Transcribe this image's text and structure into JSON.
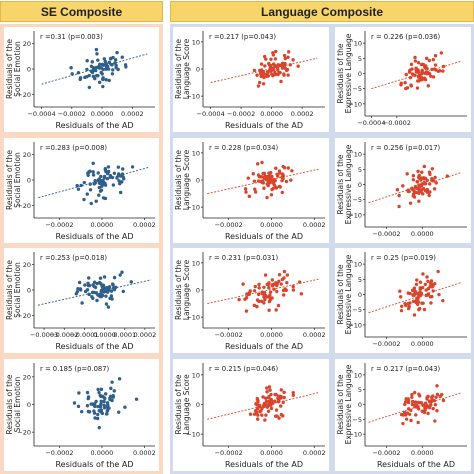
{
  "headers": {
    "se": "SE Composite",
    "language": "Language Composite"
  },
  "colors": {
    "se_points": "#2f5f8a",
    "lang_points": "#d9452c",
    "header_bg": "#f7d56a",
    "se_bg": "#f9d9c4",
    "lang_bg": "#d2dbeb"
  },
  "chart_data": [
    {
      "type": "scatter",
      "id": "se-r1",
      "xlabel": "Residuals of the AD",
      "ylabel": "Residuals of the Social Emotion",
      "annotation": "r =0.31 (p=0.003)",
      "xlim": [
        -0.00045,
        0.00035
      ],
      "ylim": [
        -30,
        30
      ],
      "xticks": [
        -0.0004,
        -0.0002,
        0.0,
        0.0002
      ],
      "xticklabels": [
        "−0.0004",
        "−0.0002",
        "0.0000",
        "0.0002"
      ],
      "yticks": [
        -20,
        0,
        20
      ],
      "yticklabels": [
        "−20",
        "0",
        "20"
      ],
      "show_xlabel": true,
      "trend": {
        "x": [
          -0.0004,
          0.0003
        ],
        "y": [
          -12,
          12
        ]
      },
      "seed": 11
    },
    {
      "type": "scatter",
      "id": "lang-r1-c1",
      "xlabel": "Residuals of the AD",
      "ylabel": "Residuals of the Language Score",
      "annotation": "r =0.217 (p=0.043)",
      "xlim": [
        -0.00045,
        0.00035
      ],
      "ylim": [
        -14,
        14
      ],
      "xticks": [
        -0.0004,
        -0.0002,
        0.0,
        0.0002
      ],
      "xticklabels": [
        "−0.0004",
        "−0.0002",
        "0.0000",
        "0.0002"
      ],
      "yticks": [
        -10,
        0,
        10
      ],
      "yticklabels": [
        "−10",
        "0",
        "10"
      ],
      "show_xlabel": true,
      "trend": {
        "x": [
          -0.0004,
          0.0003
        ],
        "y": [
          -5,
          4
        ]
      },
      "seed": 12
    },
    {
      "type": "scatter",
      "id": "lang-r1-c2",
      "xlabel": "",
      "ylabel": "Residuals of the Expressive Language",
      "annotation": "r = 0.226 (p=0.036)",
      "xlim": [
        -0.00045,
        0.00035
      ],
      "ylim": [
        -14,
        14
      ],
      "xticks": [
        -0.0004,
        -0.0002
      ],
      "xticklabels": [
        "−0.0004",
        "−0.0002"
      ],
      "yticks": [
        -10,
        -5,
        0,
        5,
        10
      ],
      "yticklabels": [
        "−10",
        "−5",
        "0",
        "5",
        "10"
      ],
      "show_xlabel": false,
      "trend": {
        "x": [
          -0.0004,
          0.0003
        ],
        "y": [
          -5,
          4
        ]
      },
      "seed": 13
    },
    {
      "type": "scatter",
      "id": "se-r2",
      "xlabel": "Residuals of the AD",
      "ylabel": "Residuals of the Social Emotion",
      "annotation": "r =0.283 (p=0.008)",
      "xlim": [
        -0.00032,
        0.00025
      ],
      "ylim": [
        -30,
        30
      ],
      "xticks": [
        -0.0002,
        0.0,
        0.0002
      ],
      "xticklabels": [
        "−0.0002",
        "0.0000",
        "0.0002"
      ],
      "yticks": [
        -20,
        0,
        20
      ],
      "yticklabels": [
        "−20",
        "0",
        "20"
      ],
      "show_xlabel": true,
      "trend": {
        "x": [
          -0.0003,
          0.00022
        ],
        "y": [
          -14,
          10
        ]
      },
      "seed": 21
    },
    {
      "type": "scatter",
      "id": "lang-r2-c1",
      "xlabel": "Residuals of the AD",
      "ylabel": "Residuals of the Language Score",
      "annotation": "r = 0.228 (p=0.034)",
      "xlim": [
        -0.00032,
        0.00025
      ],
      "ylim": [
        -14,
        14
      ],
      "xticks": [
        -0.0002,
        0.0,
        0.0002
      ],
      "xticklabels": [
        "−0.0002",
        "0.0000",
        "0.0002"
      ],
      "yticks": [
        -10,
        0,
        10
      ],
      "yticklabels": [
        "−10",
        "0",
        "10"
      ],
      "show_xlabel": true,
      "trend": {
        "x": [
          -0.0003,
          0.00022
        ],
        "y": [
          -5,
          4
        ]
      },
      "seed": 22
    },
    {
      "type": "scatter",
      "id": "lang-r2-c2",
      "xlabel": "",
      "ylabel": "Residuals of the Expressive Language",
      "annotation": "r = 0.256 (p=0.017)",
      "xlim": [
        -0.00032,
        0.00025
      ],
      "ylim": [
        -14,
        14
      ],
      "xticks": [
        -0.0002,
        0.0
      ],
      "xticklabels": [
        "−0.0002",
        "0.0000"
      ],
      "yticks": [
        -10,
        -5,
        0,
        5,
        10
      ],
      "yticklabels": [
        "−10",
        "−5",
        "0",
        "5",
        "10"
      ],
      "show_xlabel": false,
      "trend": {
        "x": [
          -0.0003,
          0.00022
        ],
        "y": [
          -6,
          4
        ]
      },
      "seed": 23
    },
    {
      "type": "scatter",
      "id": "se-r3",
      "xlabel": "Residuals of the AD",
      "ylabel": "Residuals of the Social Emotion",
      "annotation": "r =0.253 (p=0.018)",
      "xlim": [
        -0.00035,
        0.00025
      ],
      "ylim": [
        -30,
        30
      ],
      "xticks": [
        -0.0003,
        -0.0002,
        -0.0001,
        0.0,
        0.0001,
        0.0002
      ],
      "xticklabels": [
        "−0.0003",
        "−0.0002",
        "−0.0001",
        "0.0000",
        "0.0001",
        "0.0002"
      ],
      "yticks": [
        -20,
        0,
        20
      ],
      "yticklabels": [
        "−20",
        "0",
        "20"
      ],
      "show_xlabel": true,
      "trend": {
        "x": [
          -0.00033,
          0.00023
        ],
        "y": [
          -12,
          8
        ]
      },
      "seed": 31
    },
    {
      "type": "scatter",
      "id": "lang-r3-c1",
      "xlabel": "Residuals of the AD",
      "ylabel": "Residuals of the Language Score",
      "annotation": "r = 0.231 (p=0.031)",
      "xlim": [
        -0.00032,
        0.00025
      ],
      "ylim": [
        -14,
        14
      ],
      "xticks": [
        -0.0002,
        0.0,
        0.0002
      ],
      "xticklabels": [
        "−0.0002",
        "0.0000",
        "0.0002"
      ],
      "yticks": [
        -10,
        0,
        10
      ],
      "yticklabels": [
        "−10",
        "0",
        "10"
      ],
      "show_xlabel": true,
      "trend": {
        "x": [
          -0.0003,
          0.00022
        ],
        "y": [
          -5,
          4
        ]
      },
      "seed": 32
    },
    {
      "type": "scatter",
      "id": "lang-r3-c2",
      "xlabel": "",
      "ylabel": "Residuals of the Expressive Language",
      "annotation": "r = 0.25 (p=0.019)",
      "xlim": [
        -0.00032,
        0.00025
      ],
      "ylim": [
        -14,
        14
      ],
      "xticks": [
        -0.0002,
        0.0
      ],
      "xticklabels": [
        "−0.0002",
        "0.0000"
      ],
      "yticks": [
        -10,
        -5,
        0,
        5,
        10
      ],
      "yticklabels": [
        "−10",
        "−5",
        "0",
        "5",
        "10"
      ],
      "show_xlabel": false,
      "trend": {
        "x": [
          -0.0003,
          0.00022
        ],
        "y": [
          -6,
          4
        ]
      },
      "seed": 33
    },
    {
      "type": "scatter",
      "id": "se-r4",
      "xlabel": "Residuals of the AD",
      "ylabel": "Residuals of the Social Emotion",
      "annotation": "r = 0.185 (p=0.087)",
      "xlim": [
        -0.00032,
        0.00025
      ],
      "ylim": [
        -30,
        30
      ],
      "xticks": [
        -0.0002,
        0.0,
        0.0002
      ],
      "xticklabels": [
        "−0.0002",
        "0.0000",
        "0.0002"
      ],
      "yticks": [
        -20,
        0,
        20
      ],
      "yticklabels": [
        "−20",
        "0",
        "20"
      ],
      "show_xlabel": true,
      "trend": null,
      "seed": 41
    },
    {
      "type": "scatter",
      "id": "lang-r4-c1",
      "xlabel": "Residuals of the AD",
      "ylabel": "Residuals of the Language Score",
      "annotation": "r = 0.215 (p=0.046)",
      "xlim": [
        -0.00032,
        0.00025
      ],
      "ylim": [
        -14,
        14
      ],
      "xticks": [
        -0.0002,
        0.0,
        0.0002
      ],
      "xticklabels": [
        "−0.0002",
        "0.0000",
        "0.0002"
      ],
      "yticks": [
        -10,
        0,
        10
      ],
      "yticklabels": [
        "−10",
        "0",
        "10"
      ],
      "show_xlabel": true,
      "trend": {
        "x": [
          -0.0003,
          0.00022
        ],
        "y": [
          -5,
          4
        ]
      },
      "seed": 42
    },
    {
      "type": "scatter",
      "id": "lang-r4-c2",
      "xlabel": "Residuals of the AD",
      "ylabel": "Residuals of the Expressive Language",
      "annotation": "r = 0.217 (p=0.043)",
      "xlim": [
        -0.00032,
        0.00025
      ],
      "ylim": [
        -14,
        14
      ],
      "xticks": [
        -0.0002,
        0.0
      ],
      "xticklabels": [
        "−0.0002",
        "0.0000"
      ],
      "yticks": [
        -10,
        -5,
        0,
        5,
        10
      ],
      "yticklabels": [
        "−10",
        "−5",
        "0",
        "5",
        "10"
      ],
      "show_xlabel": true,
      "trend": {
        "x": [
          -0.0003,
          0.00022
        ],
        "y": [
          -6,
          4
        ]
      },
      "seed": 43
    }
  ]
}
